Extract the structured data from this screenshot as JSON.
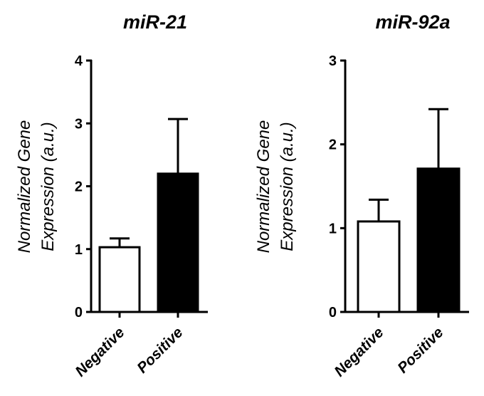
{
  "chart_data": [
    {
      "type": "bar",
      "title": "miR-21",
      "ylabel": "Normalized Gene Expression (a.u.)",
      "ylabel_lines": [
        "Normalized Gene",
        "Expression (a.u.)"
      ],
      "xlabel": "",
      "ylim": [
        0,
        4
      ],
      "yticks": [
        0,
        1,
        2,
        3,
        4
      ],
      "categories": [
        "Negative",
        "Positive"
      ],
      "values": [
        1.03,
        2.2
      ],
      "errors": [
        0.14,
        0.87
      ],
      "bar_fills": [
        "#ffffff",
        "#000000"
      ],
      "grid": false,
      "legend": "none"
    },
    {
      "type": "bar",
      "title": "miR-92a",
      "ylabel": "Normalized Gene Expression (a.u.)",
      "ylabel_lines": [
        "Normalized Gene",
        "Expression (a.u.)"
      ],
      "xlabel": "",
      "ylim": [
        0,
        3
      ],
      "yticks": [
        0,
        1,
        2,
        3
      ],
      "categories": [
        "Negative",
        "Positive"
      ],
      "values": [
        1.08,
        1.71
      ],
      "errors": [
        0.26,
        0.71
      ],
      "bar_fills": [
        "#ffffff",
        "#000000"
      ],
      "grid": false,
      "legend": "none"
    }
  ],
  "colors": {
    "axis": "#000000",
    "bar_outline": "#000000"
  }
}
